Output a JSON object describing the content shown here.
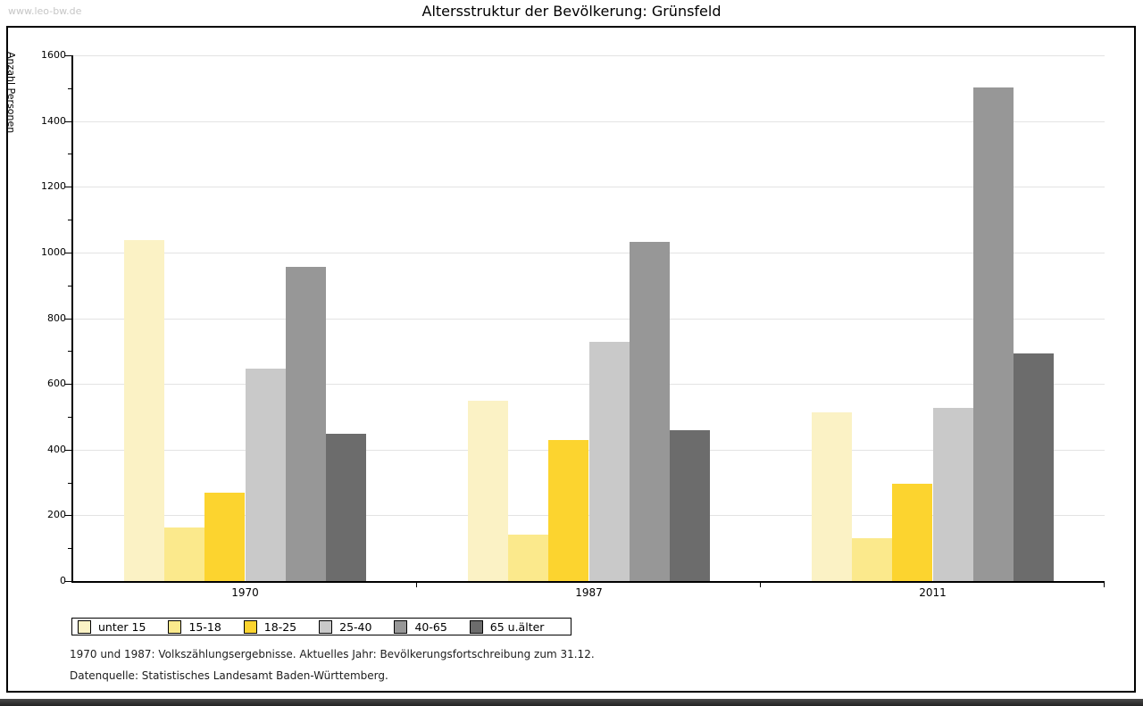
{
  "watermark": "www.leo-bw.de",
  "chart_data": {
    "type": "bar",
    "title": "Altersstruktur der Bevölkerung: Grünsfeld",
    "ylabel": "Anzahl Personen",
    "xlabel": "",
    "ylim": [
      0,
      1600
    ],
    "ytick_major": 200,
    "ytick_minor": 100,
    "grid": true,
    "legend_position": "bottom-left",
    "categories": [
      "1970",
      "1987",
      "2011"
    ],
    "series": [
      {
        "name": "unter 15",
        "color": "#FBF2C5",
        "values": [
          1037,
          549,
          513
        ]
      },
      {
        "name": "15-18",
        "color": "#FBE98C",
        "values": [
          162,
          142,
          131
        ]
      },
      {
        "name": "18-25",
        "color": "#FCD42F",
        "values": [
          270,
          428,
          297
        ]
      },
      {
        "name": "25-40",
        "color": "#C9C9C9",
        "values": [
          647,
          728,
          528
        ]
      },
      {
        "name": "40-65",
        "color": "#979797",
        "values": [
          957,
          1032,
          1503
        ]
      },
      {
        "name": "65 u.älter",
        "color": "#6C6C6C",
        "values": [
          449,
          458,
          692
        ]
      }
    ],
    "colors": {
      "grid": "#E3E3E3",
      "axis": "#000000",
      "background": "#FFFFFF"
    }
  },
  "footnotes": [
    "1970 und 1987: Volkszählungsergebnisse. Aktuelles Jahr: Bevölkerungsfortschreibung zum 31.12.",
    "Datenquelle: Statistisches Landesamt Baden-Württemberg."
  ]
}
